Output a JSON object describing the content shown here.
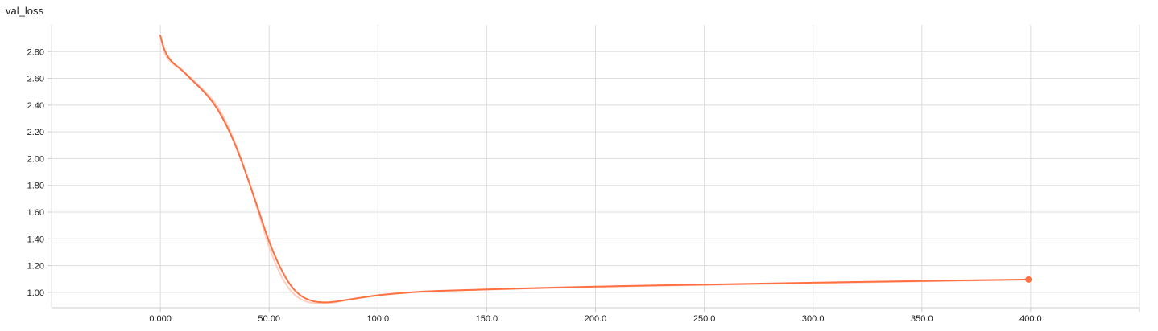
{
  "chart_data": {
    "type": "line",
    "title": "val_loss",
    "xlabel": "",
    "ylabel": "",
    "xlim": [
      -50,
      450
    ],
    "ylim": [
      0.885,
      3.0
    ],
    "x_ticks": [
      0,
      50,
      100,
      150,
      200,
      250,
      300,
      350,
      400,
      450
    ],
    "x_tick_labels": [
      "0.000",
      "50.00",
      "100.0",
      "150.0",
      "200.0",
      "250.0",
      "300.0",
      "350.0",
      "400.0",
      ""
    ],
    "y_ticks": [
      1.0,
      1.2,
      1.4,
      1.6,
      1.8,
      2.0,
      2.2,
      2.4,
      2.6,
      2.8
    ],
    "y_tick_labels": [
      "1.00",
      "1.20",
      "1.40",
      "1.60",
      "1.80",
      "2.00",
      "2.20",
      "2.40",
      "2.60",
      "2.80"
    ],
    "grid": true,
    "colors": {
      "series": "#ff7043",
      "raw_series": "#ffccbc",
      "grid": "#dddddd",
      "axis": "#cccccc"
    },
    "series": [
      {
        "smoothed": true,
        "x": [
          0,
          2,
          5,
          10,
          15,
          20,
          25,
          30,
          35,
          40,
          45,
          50,
          55,
          60,
          65,
          70,
          75,
          80,
          85,
          90,
          95,
          100,
          110,
          120,
          130,
          150,
          175,
          200,
          250,
          300,
          350,
          399
        ],
        "y": [
          2.92,
          2.81,
          2.73,
          2.66,
          2.58,
          2.5,
          2.4,
          2.26,
          2.08,
          1.86,
          1.62,
          1.38,
          1.19,
          1.05,
          0.97,
          0.935,
          0.925,
          0.93,
          0.942,
          0.955,
          0.967,
          0.978,
          0.993,
          1.005,
          1.012,
          1.022,
          1.033,
          1.043,
          1.058,
          1.072,
          1.085,
          1.096
        ]
      },
      {
        "smoothed": false,
        "x": [
          0,
          2,
          5,
          10,
          15,
          20,
          25,
          30,
          35,
          40,
          45,
          50,
          55,
          60,
          65,
          70,
          75,
          80,
          85,
          90,
          95,
          100,
          110,
          120,
          130,
          150,
          175,
          200,
          250,
          300,
          350,
          399
        ],
        "y": [
          2.92,
          2.79,
          2.72,
          2.66,
          2.59,
          2.51,
          2.42,
          2.28,
          2.09,
          1.86,
          1.6,
          1.34,
          1.14,
          1.01,
          0.945,
          0.92,
          0.918,
          0.925,
          0.94,
          0.953,
          0.966,
          0.978,
          0.994,
          1.005,
          1.011,
          1.02,
          1.031,
          1.04,
          1.055,
          1.068,
          1.082,
          1.095
        ]
      }
    ]
  }
}
